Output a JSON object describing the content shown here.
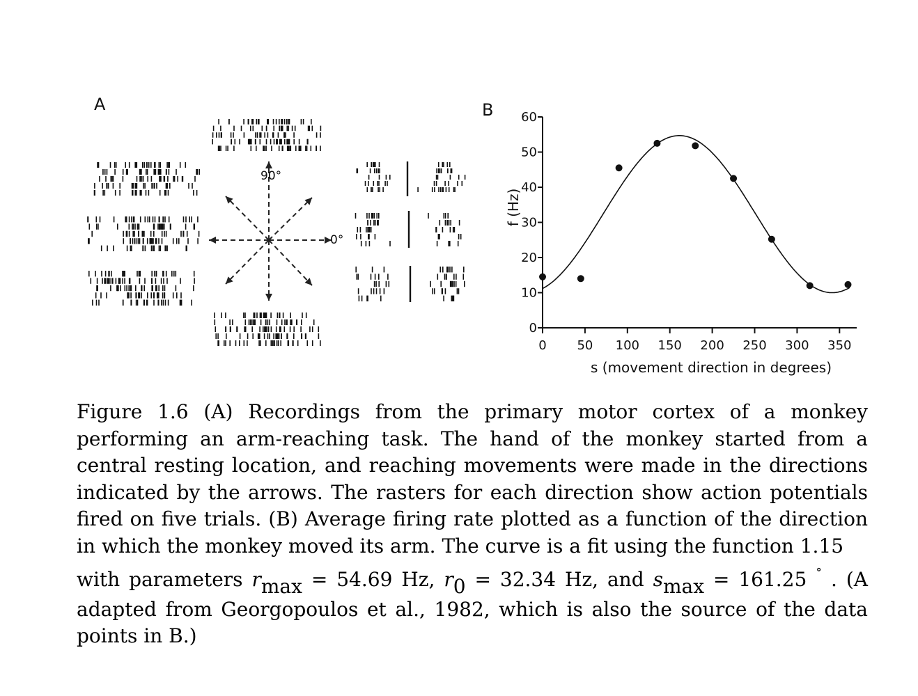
{
  "panel_a": {
    "letter": "A",
    "label_90": "90°",
    "label_0": "0°"
  },
  "panel_b": {
    "letter": "B"
  },
  "chart_data": {
    "type": "scatter",
    "xlabel": "s (movement direction in degrees)",
    "ylabel": "f (Hz)",
    "xlim": [
      0,
      360
    ],
    "ylim": [
      0,
      60
    ],
    "xticks": [
      0,
      50,
      100,
      150,
      200,
      250,
      300,
      350
    ],
    "yticks": [
      0,
      10,
      20,
      30,
      40,
      50,
      60
    ],
    "points": [
      {
        "x": 0,
        "y": 14.5
      },
      {
        "x": 45,
        "y": 14.0
      },
      {
        "x": 90,
        "y": 45.5
      },
      {
        "x": 135,
        "y": 52.5
      },
      {
        "x": 180,
        "y": 51.8
      },
      {
        "x": 225,
        "y": 42.5
      },
      {
        "x": 270,
        "y": 25.2
      },
      {
        "x": 315,
        "y": 12.0
      },
      {
        "x": 360,
        "y": 12.3
      }
    ],
    "fit_curve": {
      "r0": 32.34,
      "rmax": 54.69,
      "smax": 161.25
    },
    "grid": false
  },
  "caption": {
    "p1": "Figure 1.6 (A) Recordings from the primary motor cortex of a monkey performing an arm-reaching task. The hand of the monkey started from a central resting location, and reaching movements were made in the directions indicated by the arrows. The rasters for each direction show action potentials fired on five trials. (B) Average firing rate plotted as a function of the direction in which the monkey moved its arm. The curve is a fit using the function 1.15",
    "p2_a": "with parameters ",
    "r_sym": "r",
    "max_sub": "max",
    "p2_b": " = 54.69 Hz, ",
    "r0_sym": "r",
    "zero_sub": "0",
    "p2_c": " = 32.34 Hz, and ",
    "s_sym": "s",
    "max_sub2": "max",
    "p2_d": " = 161.25 ",
    "deg_sym": "∘",
    "p2_e": " . (A adapted from Georgopoulos et al., 1982, which is also the source of the data points in B.)"
  }
}
